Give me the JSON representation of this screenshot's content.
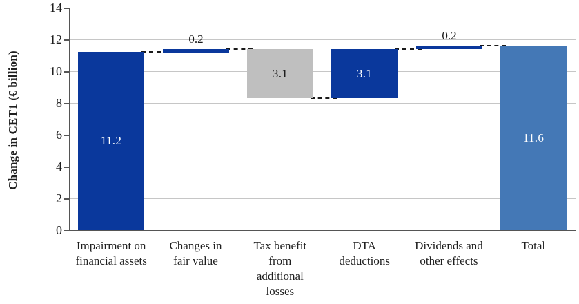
{
  "chart_data": {
    "type": "bar",
    "subtype": "waterfall",
    "title": "",
    "xlabel": "",
    "ylabel": "Change in CET1 (€ billion)",
    "ylim": [
      0,
      14
    ],
    "yticks": [
      0,
      2,
      4,
      6,
      8,
      10,
      12,
      14
    ],
    "grid": true,
    "legend": "none",
    "categories": [
      {
        "label": "Impairment on financial assets",
        "lines": [
          "Impairment on",
          "financial assets"
        ]
      },
      {
        "label": "Changes in fair value",
        "lines": [
          "Changes in",
          "fair value"
        ]
      },
      {
        "label": "Tax benefit from additional losses",
        "lines": [
          "Tax benefit",
          "from",
          "additional",
          "losses"
        ]
      },
      {
        "label": "DTA deductions",
        "lines": [
          "DTA",
          "deductions"
        ]
      },
      {
        "label": "Dividends and other effects",
        "lines": [
          "Dividends and",
          "other effects"
        ]
      },
      {
        "label": "Total",
        "lines": [
          "Total"
        ]
      }
    ],
    "bars": [
      {
        "category": "Impairment on financial assets",
        "start": 0,
        "end": 11.2,
        "value": 11.2,
        "label": "11.2",
        "label_position": "inside",
        "color_key": "dark_blue",
        "label_color_key": "white"
      },
      {
        "category": "Changes in fair value",
        "start": 11.2,
        "end": 11.4,
        "value": 0.2,
        "label": "0.2",
        "label_position": "above",
        "color_key": "dark_blue",
        "label_color_key": "black"
      },
      {
        "category": "Tax benefit from additional losses",
        "start": 11.4,
        "end": 8.3,
        "value": 3.1,
        "label": "3.1",
        "label_position": "inside",
        "color_key": "gray",
        "label_color_key": "black"
      },
      {
        "category": "DTA deductions",
        "start": 8.3,
        "end": 11.4,
        "value": 3.1,
        "label": "3.1",
        "label_position": "inside",
        "color_key": "dark_blue",
        "label_color_key": "white"
      },
      {
        "category": "Dividends and other effects",
        "start": 11.4,
        "end": 11.6,
        "value": 0.2,
        "label": "0.2",
        "label_position": "above",
        "color_key": "dark_blue",
        "label_color_key": "black"
      },
      {
        "category": "Total",
        "start": 0,
        "end": 11.6,
        "value": 11.6,
        "label": "11.6",
        "label_position": "inside",
        "color_key": "total_blue",
        "label_color_key": "white"
      }
    ],
    "connectors_between_bars": true
  },
  "colors": {
    "dark_blue": "#0a389c",
    "total_blue": "#4478b6",
    "gray": "#bfbfbf",
    "gridline": "#c6c6c6",
    "axis": "#555555",
    "connector": "#1a1a1a",
    "black": "#1a1a1a",
    "white": "#ffffff"
  }
}
